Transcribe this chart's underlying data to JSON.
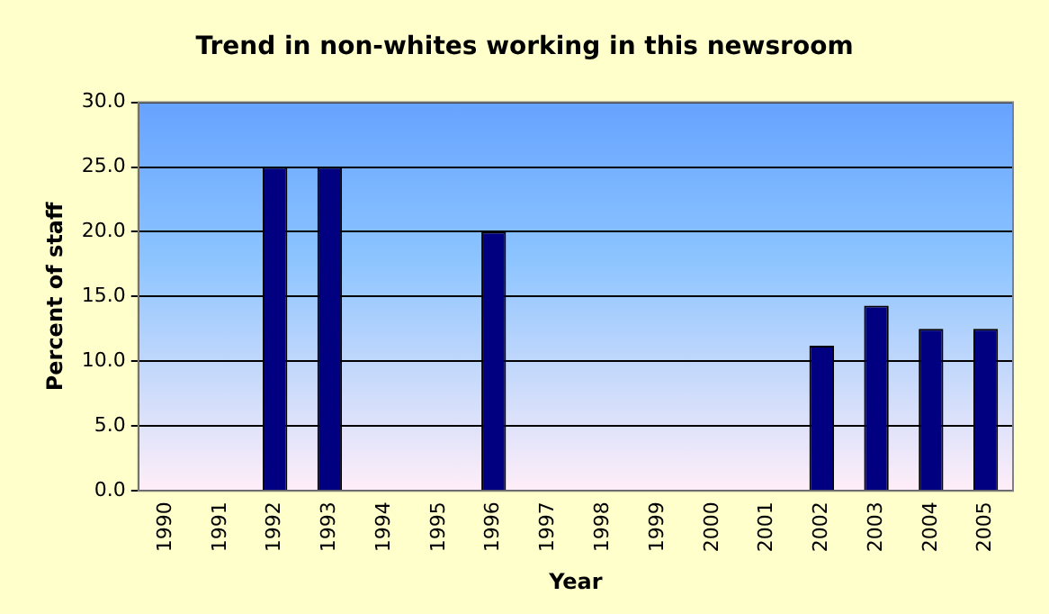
{
  "chart_data": {
    "type": "bar",
    "title": "Trend in non-whites working in this newsroom",
    "xlabel": "Year",
    "ylabel": "Percent of staff",
    "categories": [
      "1990",
      "1991",
      "1992",
      "1993",
      "1994",
      "1995",
      "1996",
      "1997",
      "1998",
      "1999",
      "2000",
      "2001",
      "2002",
      "2003",
      "2004",
      "2005"
    ],
    "values": [
      null,
      null,
      25,
      25,
      null,
      null,
      20,
      null,
      null,
      null,
      null,
      null,
      11.2,
      14.3,
      12.5,
      12.5
    ],
    "color": "#000080",
    "ylim": [
      0,
      30
    ],
    "yticks": [
      {
        "value": 0,
        "label": "0.0"
      },
      {
        "value": 5,
        "label": "5.0"
      },
      {
        "value": 10,
        "label": "10.0"
      },
      {
        "value": 15,
        "label": "15.0"
      },
      {
        "value": 20,
        "label": "20.0"
      },
      {
        "value": 25,
        "label": "25.0"
      },
      {
        "value": 30,
        "label": "30.0"
      }
    ],
    "grid": "y",
    "legend": false
  }
}
